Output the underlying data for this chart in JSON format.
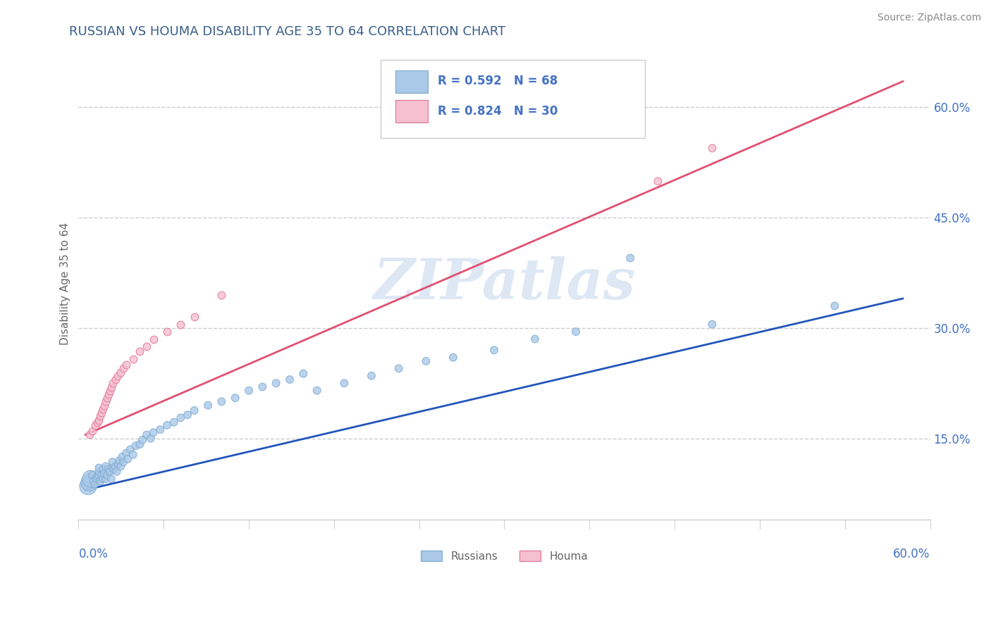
{
  "title": "RUSSIAN VS HOUMA DISABILITY AGE 35 TO 64 CORRELATION CHART",
  "source_text": "Source: ZipAtlas.com",
  "ylabel": "Disability Age 35 to 64",
  "watermark": "ZIPatlas",
  "xlim": [
    -0.005,
    0.62
  ],
  "ylim": [
    0.04,
    0.68
  ],
  "xtick_left_label": "0.0%",
  "xtick_right_label": "60.0%",
  "yticks": [
    0.15,
    0.3,
    0.45,
    0.6
  ],
  "ytick_labels": [
    "15.0%",
    "30.0%",
    "45.0%",
    "60.0%"
  ],
  "title_color": "#3a5f8a",
  "title_fontsize": 13,
  "axis_label_color": "#666666",
  "tick_color": "#4472c4",
  "grid_color": "#cccccc",
  "grid_linestyle": "--",
  "russian_color": "#aac8e8",
  "russian_edge_color": "#7baad0",
  "houma_color": "#f5c0d0",
  "houma_edge_color": "#e07090",
  "russian_line_color": "#2255bb",
  "houma_line_color": "#e05070",
  "legend_r1": "R = 0.592",
  "legend_n1": "N = 68",
  "legend_r2": "R = 0.824",
  "legend_n2": "N = 30",
  "legend_label1": "Russians",
  "legend_label2": "Houma",
  "russian_line_x0": 0.0,
  "russian_line_y0": 0.08,
  "russian_line_x1": 0.6,
  "russian_line_y1": 0.34,
  "houma_line_x0": 0.0,
  "houma_line_y0": 0.155,
  "houma_line_x1": 0.6,
  "houma_line_y1": 0.635,
  "russians_x": [
    0.002,
    0.003,
    0.004,
    0.005,
    0.006,
    0.007,
    0.008,
    0.009,
    0.01,
    0.01,
    0.01,
    0.011,
    0.012,
    0.013,
    0.013,
    0.014,
    0.015,
    0.015,
    0.016,
    0.017,
    0.018,
    0.019,
    0.02,
    0.02,
    0.021,
    0.022,
    0.023,
    0.024,
    0.025,
    0.026,
    0.027,
    0.028,
    0.03,
    0.031,
    0.033,
    0.035,
    0.037,
    0.04,
    0.042,
    0.045,
    0.048,
    0.05,
    0.055,
    0.06,
    0.065,
    0.07,
    0.075,
    0.08,
    0.09,
    0.1,
    0.11,
    0.12,
    0.13,
    0.14,
    0.15,
    0.16,
    0.17,
    0.19,
    0.21,
    0.23,
    0.25,
    0.27,
    0.3,
    0.33,
    0.36,
    0.4,
    0.46,
    0.55
  ],
  "russians_y": [
    0.085,
    0.09,
    0.095,
    0.1,
    0.092,
    0.088,
    0.095,
    0.098,
    0.1,
    0.105,
    0.11,
    0.092,
    0.1,
    0.095,
    0.108,
    0.102,
    0.095,
    0.112,
    0.1,
    0.108,
    0.105,
    0.095,
    0.11,
    0.118,
    0.108,
    0.112,
    0.105,
    0.115,
    0.12,
    0.112,
    0.125,
    0.118,
    0.13,
    0.122,
    0.135,
    0.128,
    0.14,
    0.142,
    0.148,
    0.155,
    0.15,
    0.158,
    0.162,
    0.168,
    0.172,
    0.178,
    0.182,
    0.188,
    0.195,
    0.2,
    0.205,
    0.215,
    0.22,
    0.225,
    0.23,
    0.238,
    0.215,
    0.225,
    0.235,
    0.245,
    0.255,
    0.26,
    0.27,
    0.285,
    0.295,
    0.395,
    0.305,
    0.33
  ],
  "houma_x": [
    0.003,
    0.005,
    0.007,
    0.009,
    0.01,
    0.011,
    0.012,
    0.013,
    0.014,
    0.015,
    0.016,
    0.017,
    0.018,
    0.019,
    0.02,
    0.022,
    0.024,
    0.026,
    0.028,
    0.03,
    0.035,
    0.04,
    0.045,
    0.05,
    0.06,
    0.07,
    0.08,
    0.1,
    0.42,
    0.46
  ],
  "houma_y": [
    0.155,
    0.16,
    0.168,
    0.172,
    0.175,
    0.18,
    0.185,
    0.19,
    0.195,
    0.2,
    0.205,
    0.21,
    0.215,
    0.22,
    0.225,
    0.23,
    0.235,
    0.24,
    0.245,
    0.25,
    0.258,
    0.268,
    0.275,
    0.285,
    0.295,
    0.305,
    0.315,
    0.345,
    0.5,
    0.545
  ]
}
